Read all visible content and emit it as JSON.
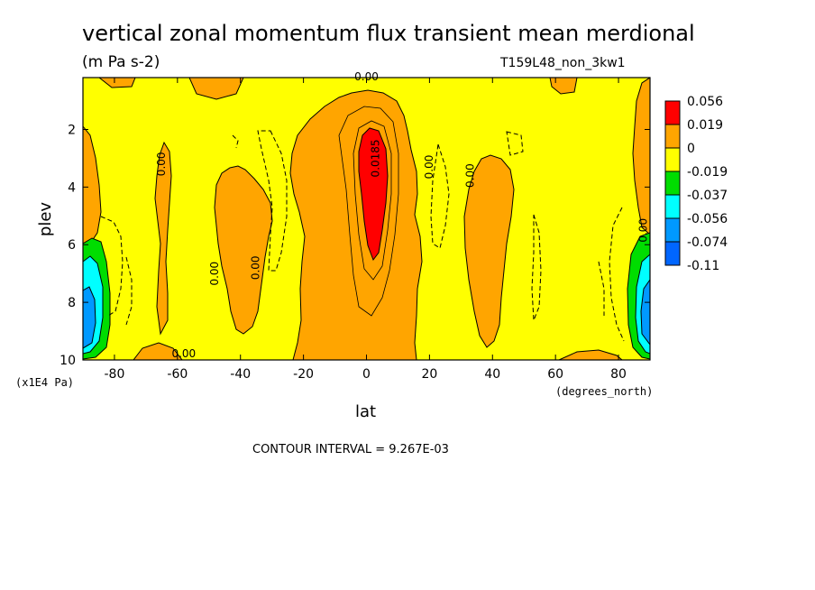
{
  "chart_data": {
    "type": "heatmap",
    "title": "vertical zonal momentum flux transient mean merdional",
    "subtitle": "(m Pa s-2)",
    "run_label": "T159L48_non_3kw1",
    "xlabel": "lat",
    "x_units": "(degrees_north)",
    "ylabel": "plev",
    "y_units": "(x1E4 Pa)",
    "xlim": [
      -90,
      90
    ],
    "ylim": [
      0.2,
      10
    ],
    "y_inverted": true,
    "x_ticks": [
      "-80",
      "-60",
      "-40",
      "-20",
      "0",
      "20",
      "40",
      "60",
      "80"
    ],
    "x_tick_values": [
      -80,
      -60,
      -40,
      -20,
      0,
      20,
      40,
      60,
      80
    ],
    "y_ticks": [
      "2",
      "4",
      "6",
      "8",
      "10"
    ],
    "y_tick_values": [
      2,
      4,
      6,
      8,
      10
    ],
    "legend": {
      "placement": "right",
      "labels": [
        "0.056",
        "0.019",
        "0",
        "-0.019",
        "-0.037",
        "-0.056",
        "-0.074",
        "-0.11"
      ],
      "colors": [
        "#ff0000",
        "#ffa500",
        "#ffff00",
        "#00dd00",
        "#00ffff",
        "#0099ff",
        "#0066ff"
      ]
    },
    "contour_labels": [
      {
        "text": "0.00",
        "lat": 0,
        "plev": 0.3
      },
      {
        "text": "0.00",
        "lat": -64,
        "plev": 3.2
      },
      {
        "text": "0.00",
        "lat": -47,
        "plev": 7.0
      },
      {
        "text": "0.00",
        "lat": -34,
        "plev": 6.8
      },
      {
        "text": "0.00",
        "lat": -58,
        "plev": 9.9
      },
      {
        "text": "0.0185",
        "lat": 4,
        "plev": 3.0
      },
      {
        "text": "0.00",
        "lat": 21,
        "plev": 3.3
      },
      {
        "text": "0.00",
        "lat": 34,
        "plev": 3.6
      },
      {
        "text": "0.00",
        "lat": 89,
        "plev": 5.5
      }
    ],
    "features": [
      {
        "name": "equatorial positive maximum",
        "lat": 3,
        "plev": 3.5,
        "value": 0.056
      },
      {
        "name": "southern polar negative minimum",
        "lat": -86,
        "plev": 8.2,
        "value": -0.11
      },
      {
        "name": "northern polar negative minimum",
        "lat": 87,
        "plev": 8.2,
        "value": -0.074
      }
    ],
    "contour_interval": 0.009267
  },
  "footer": {
    "contour_interval_text": "CONTOUR INTERVAL = 9.267E-03"
  }
}
